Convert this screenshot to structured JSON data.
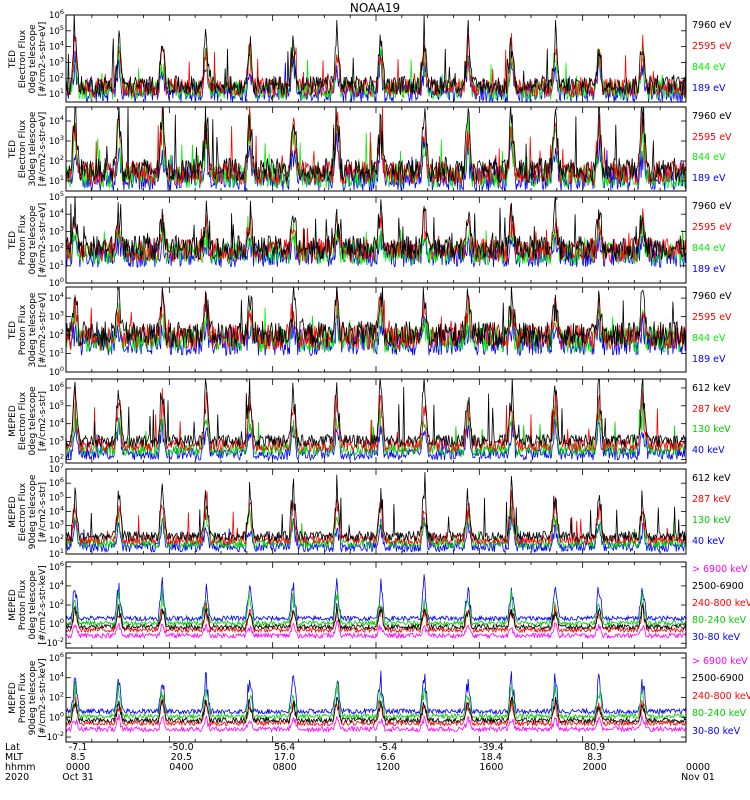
{
  "figure_title": "NOAA19",
  "panels": [
    {
      "ylabel_lines": [
        "TED",
        "Electron Flux",
        "0deg telescope",
        "[#/cm2-s-str-eV]"
      ],
      "tick_labels": [
        "10^1",
        "10^2",
        "10^3",
        "10^4",
        "10^5",
        "10^6"
      ],
      "legend": [
        {
          "label": "7960 eV",
          "color": "#000000"
        },
        {
          "label": "2595 eV",
          "color": "#ff0000"
        },
        {
          "label": "844 eV",
          "color": "#00ee00"
        },
        {
          "label": "189 eV",
          "color": "#0000ff"
        }
      ]
    },
    {
      "ylabel_lines": [
        "TED",
        "Electron Flux",
        "30deg telescope",
        "[#/cm2-s-str-eV]"
      ],
      "tick_labels": [
        "10^1",
        "10^2",
        "10^3",
        "10^4"
      ],
      "legend": [
        {
          "label": "7960 eV",
          "color": "#000000"
        },
        {
          "label": "2595 eV",
          "color": "#ff0000"
        },
        {
          "label": "844 eV",
          "color": "#00ee00"
        },
        {
          "label": "189 eV",
          "color": "#0000ff"
        }
      ]
    },
    {
      "ylabel_lines": [
        "TED",
        "Proton Flux",
        "0deg telescope",
        "[#/cm2-s-str-eV]"
      ],
      "tick_labels": [
        "10^0",
        "10^1",
        "10^2",
        "10^3",
        "10^4",
        "10^5"
      ],
      "legend": [
        {
          "label": "7960 eV",
          "color": "#000000"
        },
        {
          "label": "2595 eV",
          "color": "#ff0000"
        },
        {
          "label": "844 eV",
          "color": "#00ee00"
        },
        {
          "label": "189 eV",
          "color": "#0000ff"
        }
      ]
    },
    {
      "ylabel_lines": [
        "TED",
        "Proton Flux",
        "30deg telescope",
        "[#/cm2-s-str-eV]"
      ],
      "tick_labels": [
        "10^0",
        "10^1",
        "10^2",
        "10^3",
        "10^4"
      ],
      "legend": [
        {
          "label": "7960 eV",
          "color": "#000000"
        },
        {
          "label": "2595 eV",
          "color": "#ff0000"
        },
        {
          "label": "844 eV",
          "color": "#00ee00"
        },
        {
          "label": "189 eV",
          "color": "#0000ff"
        }
      ]
    },
    {
      "ylabel_lines": [
        "MEPED",
        "Electron Flux",
        "0deg telescope",
        "[#/cm2-s-str]"
      ],
      "tick_labels": [
        "10^2",
        "10^3",
        "10^4",
        "10^5",
        "10^6"
      ],
      "legend": [
        {
          "label": "612 keV",
          "color": "#000000"
        },
        {
          "label": "287 keV",
          "color": "#ff0000"
        },
        {
          "label": "130 keV",
          "color": "#00cc00"
        },
        {
          "label": "40 keV",
          "color": "#0000ff"
        }
      ]
    },
    {
      "ylabel_lines": [
        "MEPED",
        "Electron Flux",
        "90deg telescope",
        "[#/cm2-s-str]"
      ],
      "tick_labels": [
        "10^1",
        "10^2",
        "10^3",
        "10^4",
        "10^5",
        "10^6",
        "10^7"
      ],
      "legend": [
        {
          "label": "612 keV",
          "color": "#000000"
        },
        {
          "label": "287 keV",
          "color": "#ff0000"
        },
        {
          "label": "130 keV",
          "color": "#00cc00"
        },
        {
          "label": "40 keV",
          "color": "#0000ff"
        }
      ]
    },
    {
      "ylabel_lines": [
        "MEPED",
        "Proton Flux",
        "0deg telescope",
        "[#/cm2-s-str-keV]"
      ],
      "tick_labels": [
        "10^-2",
        "10^0",
        "10^2",
        "10^4",
        "10^6"
      ],
      "legend": [
        {
          "label": "> 6900 keV",
          "color": "#ff00ff"
        },
        {
          "label": "2500-6900",
          "color": "#000000"
        },
        {
          "label": "240-800 keV",
          "color": "#ff0000"
        },
        {
          "label": "80-240 keV",
          "color": "#00cc00"
        },
        {
          "label": "30-80 keV",
          "color": "#0000ff"
        }
      ]
    },
    {
      "ylabel_lines": [
        "MEPED",
        "Proton Flux",
        "90deg telescope",
        "[#/cm2-s-str-keV]"
      ],
      "tick_labels": [
        "10^-2",
        "10^0",
        "10^2",
        "10^4",
        "10^6"
      ],
      "legend": [
        {
          "label": "> 6900 keV",
          "color": "#ff00ff"
        },
        {
          "label": "2500-6900",
          "color": "#000000"
        },
        {
          "label": "240-800 keV",
          "color": "#ff0000"
        },
        {
          "label": "80-240 keV",
          "color": "#00cc00"
        },
        {
          "label": "30-80 keV",
          "color": "#0000ff"
        }
      ]
    }
  ],
  "footer": {
    "row_labels": [
      "Lat",
      "MLT",
      "hhmm",
      "2020"
    ],
    "columns": [
      {
        "lat": "-7.1",
        "mlt": "8.5",
        "hhmm": "0000",
        "date": "Oct 31"
      },
      {
        "lat": "-50.0",
        "mlt": "20.5",
        "hhmm": "0400",
        "date": ""
      },
      {
        "lat": "56.4",
        "mlt": "17.0",
        "hhmm": "0800",
        "date": ""
      },
      {
        "lat": "-5.4",
        "mlt": "6.6",
        "hhmm": "1200",
        "date": ""
      },
      {
        "lat": "-39.4",
        "mlt": "18.4",
        "hhmm": "1600",
        "date": ""
      },
      {
        "lat": "80.9",
        "mlt": "8.3",
        "hhmm": "2000",
        "date": ""
      },
      {
        "lat": "",
        "mlt": "",
        "hhmm": "0000",
        "date": "Nov 01"
      }
    ]
  },
  "chart_data": {
    "type": "line",
    "title": "NOAA19",
    "x_axis": {
      "label": "hhmm",
      "range_hours": [
        0,
        24
      ],
      "ticks": [
        "0000",
        "0400",
        "0800",
        "1200",
        "1600",
        "2000",
        "0000"
      ]
    },
    "y_scale": "log",
    "note": "Eight stacked time-series panels of particle flux; dense noisy traces with periodic auroral-zone spikes roughly every ~100 minutes (orbital passes).",
    "panels": [
      {
        "name": "TED Electron Flux 0deg",
        "ylim_exp": [
          0.5,
          6
        ],
        "series": [
          "7960 eV",
          "2595 eV",
          "844 eV",
          "189 eV"
        ]
      },
      {
        "name": "TED Electron Flux 30deg",
        "ylim_exp": [
          0.5,
          4.7
        ],
        "series": [
          "7960 eV",
          "2595 eV",
          "844 eV",
          "189 eV"
        ]
      },
      {
        "name": "TED Proton Flux 0deg",
        "ylim_exp": [
          0,
          5
        ],
        "series": [
          "7960 eV",
          "2595 eV",
          "844 eV",
          "189 eV"
        ]
      },
      {
        "name": "TED Proton Flux 30deg",
        "ylim_exp": [
          0,
          4.6
        ],
        "series": [
          "7960 eV",
          "2595 eV",
          "844 eV",
          "189 eV"
        ]
      },
      {
        "name": "MEPED Electron Flux 0deg",
        "ylim_exp": [
          1.8,
          6.5
        ],
        "series": [
          "612 keV",
          "287 keV",
          "130 keV",
          "40 keV"
        ]
      },
      {
        "name": "MEPED Electron Flux 90deg",
        "ylim_exp": [
          1,
          7
        ],
        "series": [
          "612 keV",
          "287 keV",
          "130 keV",
          "40 keV"
        ]
      },
      {
        "name": "MEPED Proton Flux 0deg",
        "ylim_exp": [
          -2.5,
          6.5
        ],
        "series": [
          "> 6900 keV",
          "2500-6900",
          "240-800 keV",
          "80-240 keV",
          "30-80 keV"
        ]
      },
      {
        "name": "MEPED Proton Flux 90deg",
        "ylim_exp": [
          -2.5,
          6.5
        ],
        "series": [
          "> 6900 keV",
          "2500-6900",
          "240-800 keV",
          "80-240 keV",
          "30-80 keV"
        ]
      }
    ]
  }
}
